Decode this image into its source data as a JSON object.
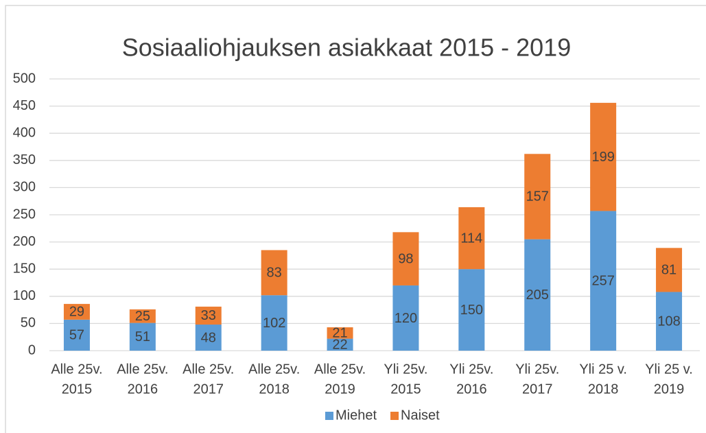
{
  "chart_data": {
    "type": "bar",
    "stacked": true,
    "title": "Sosiaaliohjauksen asiakkaat 2015 - 2019",
    "categories": [
      [
        "Alle 25v.",
        "2015"
      ],
      [
        "Alle 25v.",
        "2016"
      ],
      [
        "Alle 25v.",
        "2017"
      ],
      [
        "Alle 25v.",
        "2018"
      ],
      [
        "Alle 25v.",
        "2019"
      ],
      [
        "Yli 25v.",
        "2015"
      ],
      [
        "Yli 25v.",
        "2016"
      ],
      [
        "Yli 25v.",
        "2017"
      ],
      [
        "Yli 25 v.",
        "2018"
      ],
      [
        "Yli 25 v.",
        "2019"
      ]
    ],
    "series": [
      {
        "name": "Miehet",
        "color": "#5b9bd5",
        "values": [
          57,
          51,
          48,
          102,
          22,
          120,
          150,
          205,
          257,
          108
        ]
      },
      {
        "name": "Naiset",
        "color": "#ed7d31",
        "values": [
          29,
          25,
          33,
          83,
          21,
          98,
          114,
          157,
          199,
          81
        ]
      }
    ],
    "ylim": [
      0,
      500
    ],
    "yticks": [
      0,
      50,
      100,
      150,
      200,
      250,
      300,
      350,
      400,
      450,
      500
    ],
    "grid": true,
    "legend": "bottom"
  }
}
